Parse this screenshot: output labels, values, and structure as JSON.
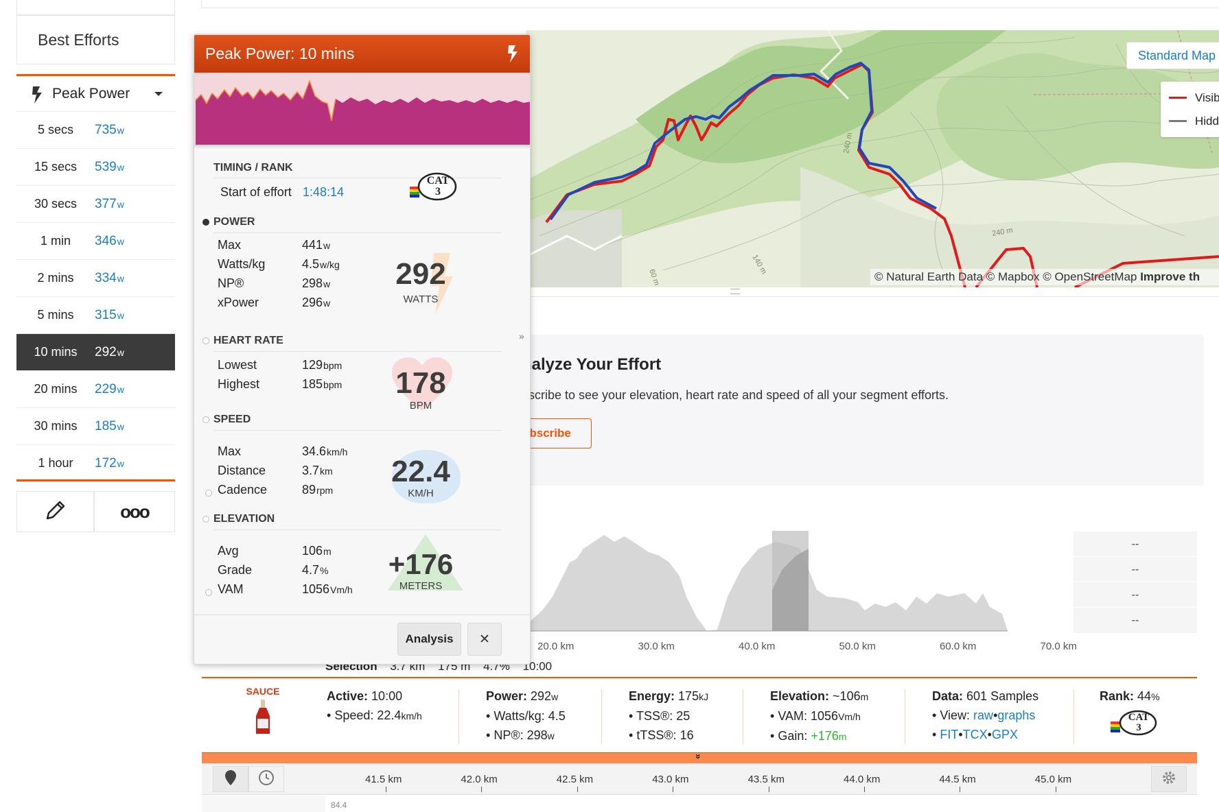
{
  "sidebar": {
    "best_efforts_title": "Best Efforts",
    "dropdown_label": "Peak Power",
    "rows": [
      {
        "label": "5 secs",
        "value": "735",
        "unit": "w"
      },
      {
        "label": "15 secs",
        "value": "539",
        "unit": "w"
      },
      {
        "label": "30 secs",
        "value": "377",
        "unit": "w"
      },
      {
        "label": "1 min",
        "value": "346",
        "unit": "w"
      },
      {
        "label": "2 mins",
        "value": "334",
        "unit": "w"
      },
      {
        "label": "5 mins",
        "value": "315",
        "unit": "w"
      },
      {
        "label": "10 mins",
        "value": "292",
        "unit": "w",
        "selected": true
      },
      {
        "label": "20 mins",
        "value": "229",
        "unit": "w"
      },
      {
        "label": "30 mins",
        "value": "185",
        "unit": "w"
      },
      {
        "label": "1 hour",
        "value": "172",
        "unit": "w"
      }
    ],
    "more_glyph": "ooo"
  },
  "popup": {
    "title": "Peak Power: 10 mins",
    "timing_title": "TIMING / RANK",
    "start_label": "Start of effort",
    "start_value": "1:48:14",
    "cat_badge": "CAT 3",
    "power_title": "POWER",
    "power": [
      {
        "label": "Max",
        "value": "441",
        "unit": "w"
      },
      {
        "label": "Watts/kg",
        "value": "4.5",
        "unit": "w/kg"
      },
      {
        "label": "NP®",
        "value": "298",
        "unit": "w"
      },
      {
        "label": "xPower",
        "value": "296",
        "unit": "w"
      }
    ],
    "power_big": "292",
    "power_big_unit": "WATTS",
    "hr_title": "HEART RATE",
    "hr": [
      {
        "label": "Lowest",
        "value": "129",
        "unit": "bpm"
      },
      {
        "label": "Highest",
        "value": "185",
        "unit": "bpm"
      }
    ],
    "hr_big": "178",
    "hr_big_unit": "BPM",
    "speed_title": "SPEED",
    "speed": [
      {
        "label": "Max",
        "value": "34.6",
        "unit": "km/h"
      },
      {
        "label": "Distance",
        "value": "3.7",
        "unit": "km"
      },
      {
        "label": "Cadence",
        "value": "89",
        "unit": "rpm"
      }
    ],
    "speed_big": "22.4",
    "speed_big_unit": "KM/H",
    "elev_title": "ELEVATION",
    "elev": [
      {
        "label": "Avg",
        "value": "106",
        "unit": "m"
      },
      {
        "label": "Grade",
        "value": "4.7",
        "unit": "%"
      },
      {
        "label": "VAM",
        "value": "1056",
        "unit": "Vm/h"
      }
    ],
    "elev_big": "+176",
    "elev_big_unit": "METERS",
    "analysis_button": "Analysis",
    "close_glyph": "✕",
    "expand_glyph": "»"
  },
  "map": {
    "standard_map_button": "Standard Map",
    "legend": [
      "Visib",
      "Hidd"
    ],
    "attribution_text": "© Natural Earth Data © Mapbox © OpenStreetMap ",
    "attribution_bold": "Improve th",
    "contours": [
      "240 m",
      "240 m",
      "140 m",
      "60 m"
    ],
    "colors": {
      "visible": "#e01a1a",
      "hidden": "#777777",
      "selection": "#2346b8"
    }
  },
  "analyze": {
    "title": "nalyze Your Effort",
    "body": "bscribe to see your elevation, heart rate and speed of all your segment efforts.",
    "button": "ubscribe"
  },
  "elevation_chart": {
    "x_ticks": [
      "20.0 km",
      "30.0 km",
      "40.0 km",
      "50.0 km",
      "60.0 km",
      "70.0 km"
    ],
    "side_values": [
      "--",
      "--",
      "--",
      "--"
    ],
    "selection_label": "Selection",
    "selection_values": [
      "3.7 km",
      "175 m",
      "4.7%",
      "10:00"
    ]
  },
  "stats": {
    "sauce_label": "SAUCE",
    "active_label": "Active:",
    "active_value": "10:00",
    "speed_label": "Speed:",
    "speed_value": "22.4",
    "speed_unit": "km/h",
    "power_label": "Power:",
    "power_value": "292",
    "power_unit": "w",
    "wkg_label": "Watts/kg:",
    "wkg_value": "4.5",
    "np_label": "NP®:",
    "np_value": "298",
    "np_unit": "w",
    "energy_label": "Energy:",
    "energy_value": "175",
    "energy_unit": "kJ",
    "tss_label": "TSS®:",
    "tss_value": "25",
    "ttss_label": "tTSS®:",
    "ttss_value": "16",
    "elev_label": "Elevation:",
    "elev_value": "~106",
    "elev_unit": "m",
    "vam_label": "VAM:",
    "vam_value": "1056",
    "vam_unit": "Vm/h",
    "gain_label": "Gain:",
    "gain_value": "+176",
    "gain_unit": "m",
    "data_label": "Data:",
    "data_value": "601 Samples",
    "view_label": "View:",
    "view_raw": "raw",
    "view_graphs": "graphs",
    "fit": "FIT",
    "tcx": "TCX",
    "gpx": "GPX",
    "rank_label": "Rank:",
    "rank_value": "44",
    "rank_unit": "%",
    "rank_badge": "CAT 3",
    "sep": "•"
  },
  "timeline": {
    "ticks": [
      "41.5 km",
      "42.0 km",
      "42.5 km",
      "43.0 km",
      "43.5 km",
      "44.0 km",
      "44.5 km",
      "45.0 km"
    ],
    "y_value": "84.4",
    "collapse_glyph": "»"
  },
  "colors": {
    "accent": "#fc5200",
    "link": "#1a7dc3",
    "power_fill": "#b8317f",
    "gain": "#2db52d"
  }
}
